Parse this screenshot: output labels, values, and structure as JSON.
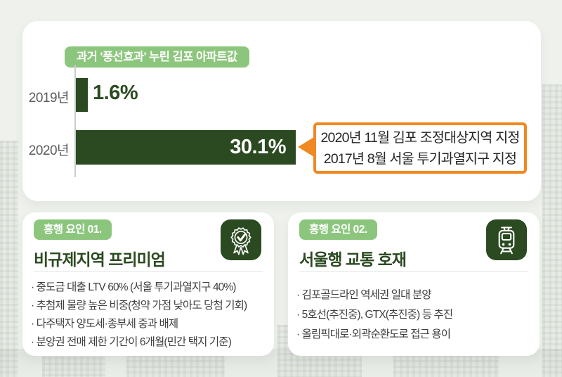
{
  "colors": {
    "page_background": "#eef1ec",
    "card_background": "#ffffff",
    "badge_green": "#8cc67d",
    "dark_green": "#2b4a21",
    "callout_orange": "#ef8921",
    "axis_gray": "#c9ccc7",
    "body_text": "#404040"
  },
  "chart_card": {
    "badge": "과거 '풍선효과' 누린 김포 아파트값",
    "rows": [
      {
        "label": "2019년",
        "value_label": "1.6%"
      },
      {
        "label": "2020년",
        "value_label": "30.1%"
      }
    ],
    "callout_line1": "2020년 11월 김포 조정대상지역 지정",
    "callout_line2": "2017년 8월 서울 투기과열지구 지정"
  },
  "chart_data": {
    "type": "bar",
    "orientation": "horizontal",
    "title": "과거 '풍선효과' 누린 김포 아파트값",
    "categories": [
      "2019년",
      "2020년"
    ],
    "values": [
      1.6,
      30.1
    ],
    "value_labels": [
      "1.6%",
      "30.1%"
    ],
    "unit": "%",
    "xlim": [
      0,
      31
    ],
    "grid": false,
    "legend": false,
    "bar_color": "#2b4a21",
    "annotation": {
      "target_category": "2020년",
      "lines": [
        "2020년 11월 김포 조정대상지역 지정",
        "2017년 8월 서울 투기과열지구 지정"
      ],
      "style": "orange-outlined-callout-with-left-arrow"
    }
  },
  "factor_cards": [
    {
      "badge": "흥행 요인 01.",
      "title": "비규제지역 프리미엄",
      "icon": "award-ribbon-icon",
      "bullets": [
        "· 중도금 대출 LTV 60% (서울 투기과열지구 40%)",
        "· 추첨제 물량 높은 비중(청약 가점 낮아도 당첨 기회)",
        "· 다주택자 양도세·종부세 중과 배제",
        "· 분양권 전매 제한 기간이 6개월(민간 택지 기준)"
      ]
    },
    {
      "badge": "흥행 요인 02.",
      "title": "서울행 교통 호재",
      "icon": "train-icon",
      "bullets": [
        "· 김포골드라인 역세권 일대 분양",
        "· 5호선(추진중), GTX(추진중) 등 추진",
        "· 올림픽대로·외곽순환도로 접근 용이"
      ]
    }
  ]
}
